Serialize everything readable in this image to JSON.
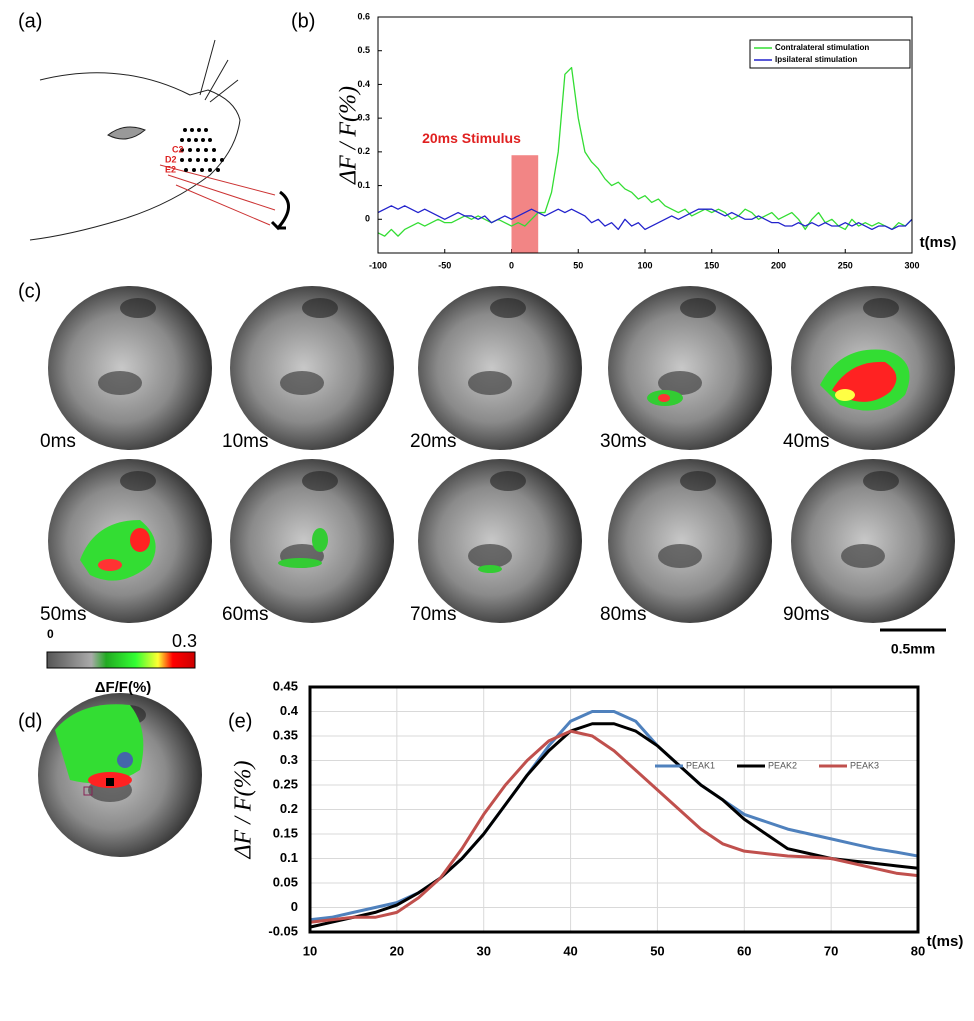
{
  "panels": [
    "(a)",
    "(b)",
    "(c)",
    "(d)",
    "(e)"
  ],
  "whiskers": [
    "C2",
    "D2",
    "E2"
  ],
  "frames": [
    "0ms",
    "10ms",
    "20ms",
    "30ms",
    "40ms",
    "50ms",
    "60ms",
    "70ms",
    "80ms",
    "90ms"
  ],
  "colorbar": {
    "min": "0",
    "max": "0.3",
    "label": "ΔF/F(%)"
  },
  "scale_bar": "0.5mm",
  "chart_data": [
    {
      "type": "line",
      "ylabel": "ΔF / F(%)",
      "xlabel": "t(ms)",
      "legend": "upper right",
      "grid": false,
      "xlim": [
        -100,
        300
      ],
      "xticks": [
        -100,
        -50,
        0,
        50,
        100,
        150,
        200,
        250,
        300
      ],
      "ylim": [
        -0.1,
        0.6
      ],
      "yticks": [
        0,
        0.1,
        0.2,
        0.3,
        0.4,
        0.5,
        0.6
      ],
      "stimulus": {
        "label": "20ms Stimulus",
        "x": [
          0,
          20
        ],
        "y": [
          -0.1,
          0.19
        ],
        "color": "#f07070"
      },
      "x": [
        -100,
        -95,
        -90,
        -85,
        -80,
        -75,
        -70,
        -65,
        -60,
        -55,
        -50,
        -45,
        -40,
        -35,
        -30,
        -25,
        -20,
        -15,
        -10,
        -5,
        0,
        5,
        10,
        15,
        20,
        25,
        30,
        35,
        40,
        45,
        50,
        55,
        60,
        65,
        70,
        75,
        80,
        85,
        90,
        95,
        100,
        105,
        110,
        115,
        120,
        125,
        130,
        135,
        140,
        145,
        150,
        155,
        160,
        165,
        170,
        175,
        180,
        185,
        190,
        195,
        200,
        205,
        210,
        215,
        220,
        225,
        230,
        235,
        240,
        245,
        250,
        255,
        260,
        265,
        270,
        275,
        280,
        285,
        290,
        295,
        300
      ],
      "series": [
        {
          "name": "Contralateral stimulation",
          "color": "#33dd33",
          "values": [
            -0.04,
            -0.05,
            -0.03,
            -0.05,
            -0.03,
            -0.02,
            -0.01,
            -0.02,
            -0.01,
            0,
            -0.01,
            -0.01,
            0,
            0.01,
            0,
            0.01,
            0,
            -0.01,
            0,
            -0.01,
            -0.02,
            -0.01,
            -0.02,
            0,
            0.02,
            0.02,
            0.08,
            0.2,
            0.43,
            0.45,
            0.3,
            0.2,
            0.17,
            0.15,
            0.12,
            0.1,
            0.11,
            0.09,
            0.08,
            0.06,
            0.07,
            0.05,
            0.06,
            0.04,
            0.03,
            0.02,
            0.03,
            0.01,
            0.02,
            0.03,
            0.02,
            0.03,
            0.02,
            0,
            0.01,
            0.03,
            0.02,
            0,
            0.01,
            0.02,
            0,
            0.01,
            0.02,
            0,
            -0.03,
            0,
            0.02,
            -0.01,
            0,
            -0.02,
            -0.03,
            0,
            -0.02,
            -0.01,
            -0.02,
            -0.01,
            -0.02,
            -0.03,
            -0.01,
            -0.02,
            0
          ]
        },
        {
          "name": "Ipsilateral stimulation",
          "color": "#2222cc",
          "values": [
            0.02,
            0.03,
            0.04,
            0.03,
            0.04,
            0.03,
            0.02,
            0.03,
            0.02,
            0.01,
            0,
            0.01,
            0.02,
            0.01,
            0.01,
            0,
            0.01,
            -0.01,
            0,
            0.01,
            0,
            0.01,
            0.02,
            0.03,
            0.02,
            0.01,
            0.02,
            0.03,
            0.02,
            0.03,
            0.02,
            0.01,
            -0.01,
            0,
            -0.02,
            -0.01,
            -0.03,
            0,
            -0.02,
            -0.01,
            -0.03,
            -0.02,
            -0.01,
            0,
            0.01,
            0,
            0.01,
            0.02,
            0.03,
            0.03,
            0.03,
            0.02,
            0.01,
            0.02,
            0.01,
            0,
            0,
            0.01,
            0,
            -0.01,
            -0.01,
            -0.02,
            -0.02,
            -0.01,
            -0.02,
            -0.01,
            -0.02,
            -0.01,
            -0.02,
            -0.02,
            -0.01,
            -0.02,
            -0.01,
            -0.02,
            -0.03,
            -0.02,
            -0.02,
            -0.03,
            -0.02,
            -0.02,
            0
          ]
        }
      ]
    },
    {
      "type": "line",
      "ylabel": "ΔF / F(%)",
      "xlabel": "t(ms)",
      "legend": "upper right",
      "grid": true,
      "xlim": [
        10,
        80
      ],
      "xticks": [
        10,
        20,
        30,
        40,
        50,
        60,
        70,
        80
      ],
      "ylim": [
        -0.05,
        0.45
      ],
      "yticks": [
        -0.05,
        0,
        0.05,
        0.1,
        0.15,
        0.2,
        0.25,
        0.3,
        0.35,
        0.4,
        0.45
      ],
      "x": [
        10,
        12.5,
        15,
        17.5,
        20,
        22.5,
        25,
        27.5,
        30,
        32.5,
        35,
        37.5,
        40,
        42.5,
        45,
        47.5,
        50,
        52.5,
        55,
        57.5,
        60,
        62.5,
        65,
        67.5,
        70,
        72.5,
        75,
        77.5,
        80
      ],
      "series": [
        {
          "name": "PEAK1",
          "color": "#4f81bd",
          "values": [
            -0.025,
            -0.02,
            -0.01,
            0,
            0.01,
            0.03,
            0.06,
            0.1,
            0.15,
            0.21,
            0.27,
            0.33,
            0.38,
            0.4,
            0.4,
            0.38,
            0.33,
            0.29,
            0.25,
            0.22,
            0.19,
            0.175,
            0.16,
            0.15,
            0.14,
            0.13,
            0.12,
            0.113,
            0.105
          ]
        },
        {
          "name": "PEAK2",
          "color": "#000000",
          "values": [
            -0.04,
            -0.03,
            -0.02,
            -0.01,
            0.005,
            0.03,
            0.06,
            0.1,
            0.15,
            0.21,
            0.27,
            0.32,
            0.36,
            0.375,
            0.375,
            0.36,
            0.33,
            0.29,
            0.25,
            0.22,
            0.18,
            0.15,
            0.12,
            0.11,
            0.1,
            0.095,
            0.09,
            0.085,
            0.08
          ]
        },
        {
          "name": "PEAK3",
          "color": "#c0504d",
          "values": [
            -0.03,
            -0.025,
            -0.02,
            -0.02,
            -0.01,
            0.02,
            0.06,
            0.12,
            0.19,
            0.25,
            0.3,
            0.34,
            0.36,
            0.35,
            0.32,
            0.28,
            0.24,
            0.2,
            0.16,
            0.13,
            0.115,
            0.11,
            0.105,
            0.103,
            0.1,
            0.09,
            0.08,
            0.07,
            0.065
          ]
        }
      ]
    }
  ]
}
